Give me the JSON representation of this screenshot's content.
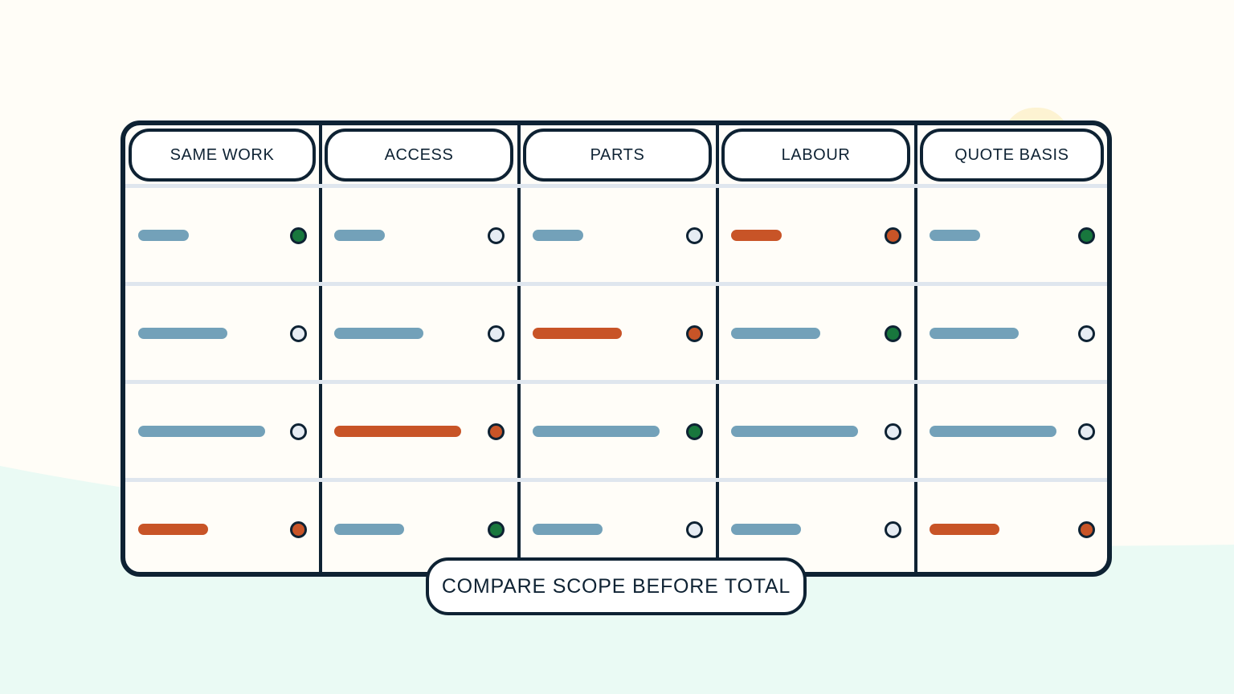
{
  "colors": {
    "page": "#fffdf7",
    "mint": "#eafaf4",
    "outline": "#0e2233",
    "row_divider": "#dfe6ee",
    "neutral": "#73a1b9",
    "flag": "#c85427",
    "ok": "#18773d",
    "empty": "#e6ecf3"
  },
  "columns": [
    {
      "label": "SAME WORK"
    },
    {
      "label": "ACCESS"
    },
    {
      "label": "PARTS"
    },
    {
      "label": "LABOUR"
    },
    {
      "label": "QUOTE BASIS"
    }
  ],
  "rows": [
    {
      "bar_length": 0.4,
      "cells": [
        {
          "bar": "neutral",
          "dot": "ok"
        },
        {
          "bar": "neutral",
          "dot": "empty"
        },
        {
          "bar": "neutral",
          "dot": "empty"
        },
        {
          "bar": "flag",
          "dot": "flag"
        },
        {
          "bar": "neutral",
          "dot": "ok"
        }
      ]
    },
    {
      "bar_length": 0.7,
      "cells": [
        {
          "bar": "neutral",
          "dot": "empty"
        },
        {
          "bar": "neutral",
          "dot": "empty"
        },
        {
          "bar": "flag",
          "dot": "flag"
        },
        {
          "bar": "neutral",
          "dot": "ok"
        },
        {
          "bar": "neutral",
          "dot": "empty"
        }
      ]
    },
    {
      "bar_length": 1.0,
      "cells": [
        {
          "bar": "neutral",
          "dot": "empty"
        },
        {
          "bar": "flag",
          "dot": "flag"
        },
        {
          "bar": "neutral",
          "dot": "ok"
        },
        {
          "bar": "neutral",
          "dot": "empty"
        },
        {
          "bar": "neutral",
          "dot": "empty"
        }
      ]
    },
    {
      "bar_length": 0.55,
      "cells": [
        {
          "bar": "flag",
          "dot": "flag"
        },
        {
          "bar": "neutral",
          "dot": "ok"
        },
        {
          "bar": "neutral",
          "dot": "empty"
        },
        {
          "bar": "neutral",
          "dot": "empty"
        },
        {
          "bar": "flag",
          "dot": "flag"
        }
      ]
    }
  ],
  "caption": "COMPARE SCOPE BEFORE TOTAL"
}
